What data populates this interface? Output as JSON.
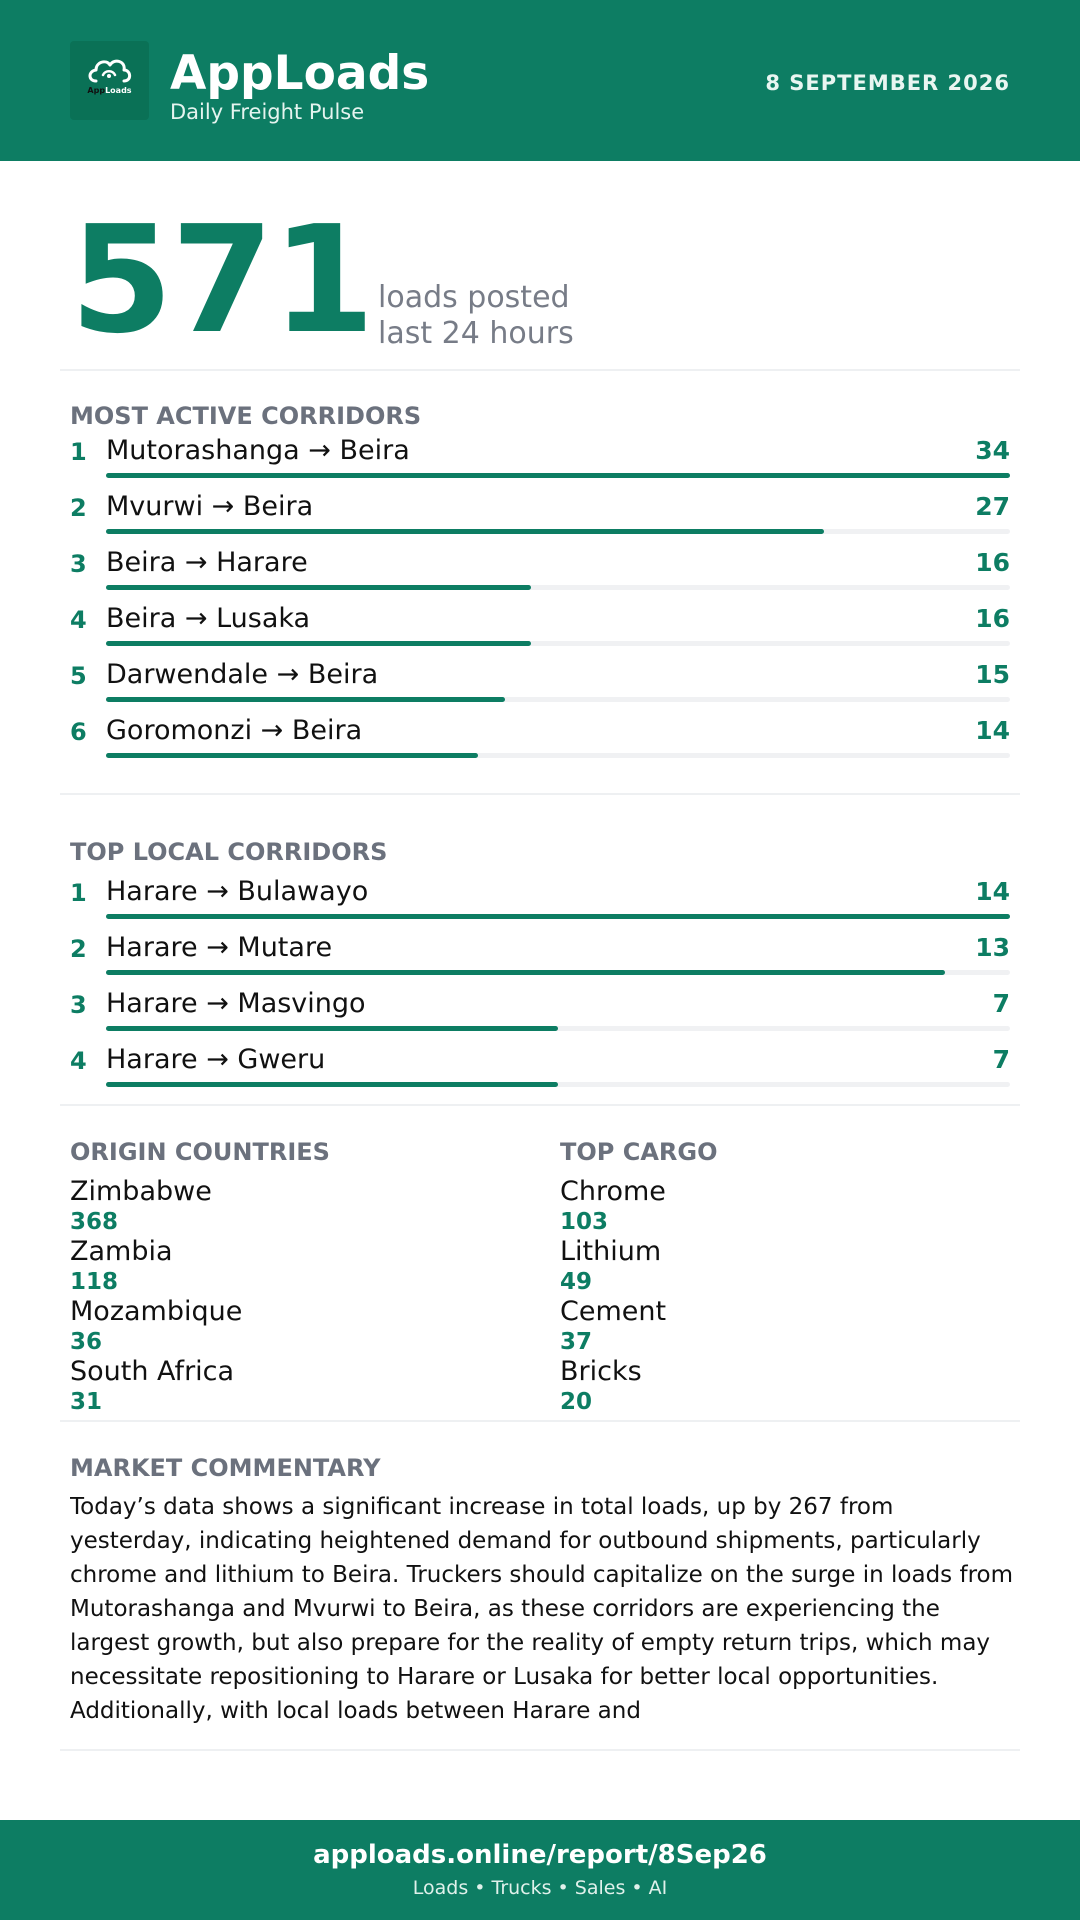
{
  "header": {
    "logo_text_a": "App",
    "logo_text_b": "Loads",
    "title": "AppLoads",
    "subtitle": "Daily Freight Pulse",
    "date": "8 SEPTEMBER 2026"
  },
  "hero": {
    "value": "571",
    "line1": "loads posted",
    "line2": "last 24 hours"
  },
  "most_active": {
    "title": "MOST ACTIVE CORRIDORS",
    "items": [
      {
        "rank": "1",
        "route": "Mutorashanga → Beira",
        "count": 34
      },
      {
        "rank": "2",
        "route": "Mvurwi → Beira",
        "count": 27
      },
      {
        "rank": "3",
        "route": "Beira → Harare",
        "count": 16
      },
      {
        "rank": "4",
        "route": "Beira → Lusaka",
        "count": 16
      },
      {
        "rank": "5",
        "route": "Darwendale → Beira",
        "count": 15
      },
      {
        "rank": "6",
        "route": "Goromonzi → Beira",
        "count": 14
      }
    ]
  },
  "top_local": {
    "title": "TOP LOCAL CORRIDORS",
    "items": [
      {
        "rank": "1",
        "route": "Harare → Bulawayo",
        "count": 14
      },
      {
        "rank": "2",
        "route": "Harare → Mutare",
        "count": 13
      },
      {
        "rank": "3",
        "route": "Harare → Masvingo",
        "count": 7
      },
      {
        "rank": "4",
        "route": "Harare → Gweru",
        "count": 7
      }
    ]
  },
  "origin_countries": {
    "title": "ORIGIN COUNTRIES",
    "items": [
      {
        "name": "Zimbabwe",
        "value": "368"
      },
      {
        "name": "Zambia",
        "value": "118"
      },
      {
        "name": "Mozambique",
        "value": "36"
      },
      {
        "name": "South Africa",
        "value": "31"
      }
    ]
  },
  "top_cargo": {
    "title": "TOP CARGO",
    "items": [
      {
        "name": "Chrome",
        "value": "103"
      },
      {
        "name": "Lithium",
        "value": "49"
      },
      {
        "name": "Cement",
        "value": "37"
      },
      {
        "name": "Bricks",
        "value": "20"
      }
    ]
  },
  "commentary": {
    "title": "MARKET COMMENTARY",
    "text": "Today’s data shows a significant increase in total loads, up by 267 from yesterday, indicating heightened demand for outbound shipments, particularly chrome and lithium to Beira. Truckers should capitalize on the surge in loads from Mutorashanga and Mvurwi to Beira, as these corridors are experiencing the largest growth, but also prepare for the reality of empty return trips, which may necessitate repositioning to Harare or Lusaka for better local opportunities. Additionally, with local loads between Harare and"
  },
  "footer": {
    "url": "apploads.online/report/8Sep26",
    "tagline": "Loads • Trucks • Sales • AI"
  },
  "colors": {
    "brand": "#0d7d63",
    "muted": "#6b717d",
    "track": "#f0f1f3"
  },
  "icons": {
    "logo": "cloud-icon"
  }
}
